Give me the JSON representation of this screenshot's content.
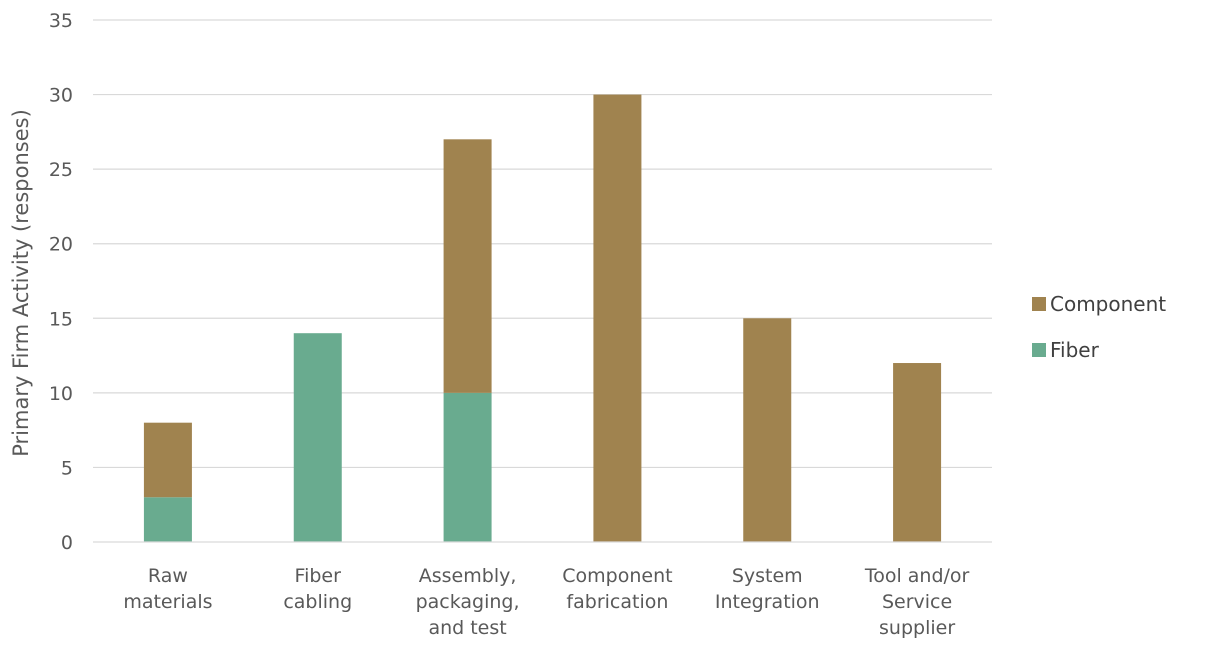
{
  "chart_data": {
    "type": "bar",
    "stacked": true,
    "categories": [
      [
        "Raw",
        "materials"
      ],
      [
        "Fiber",
        "cabling"
      ],
      [
        "Assembly,",
        "packaging,",
        "and test"
      ],
      [
        "Component",
        "fabrication"
      ],
      [
        "System",
        "Integration"
      ],
      [
        "Tool and/or",
        "Service",
        "supplier"
      ]
    ],
    "series": [
      {
        "name": "Fiber",
        "color": "#69AB8F",
        "values": [
          3,
          14,
          10,
          0,
          0,
          0
        ]
      },
      {
        "name": "Component",
        "color": "#A0834F",
        "values": [
          5,
          0,
          17,
          30,
          15,
          12
        ]
      }
    ],
    "title": "",
    "xlabel": "",
    "ylabel": "Primary Firm Activity (responses)",
    "ylim": [
      0,
      35
    ],
    "yticks": [
      0,
      5,
      10,
      15,
      20,
      25,
      30,
      35
    ],
    "grid": true,
    "legend": {
      "placement": "right",
      "order": [
        "Component",
        "Fiber"
      ]
    }
  }
}
